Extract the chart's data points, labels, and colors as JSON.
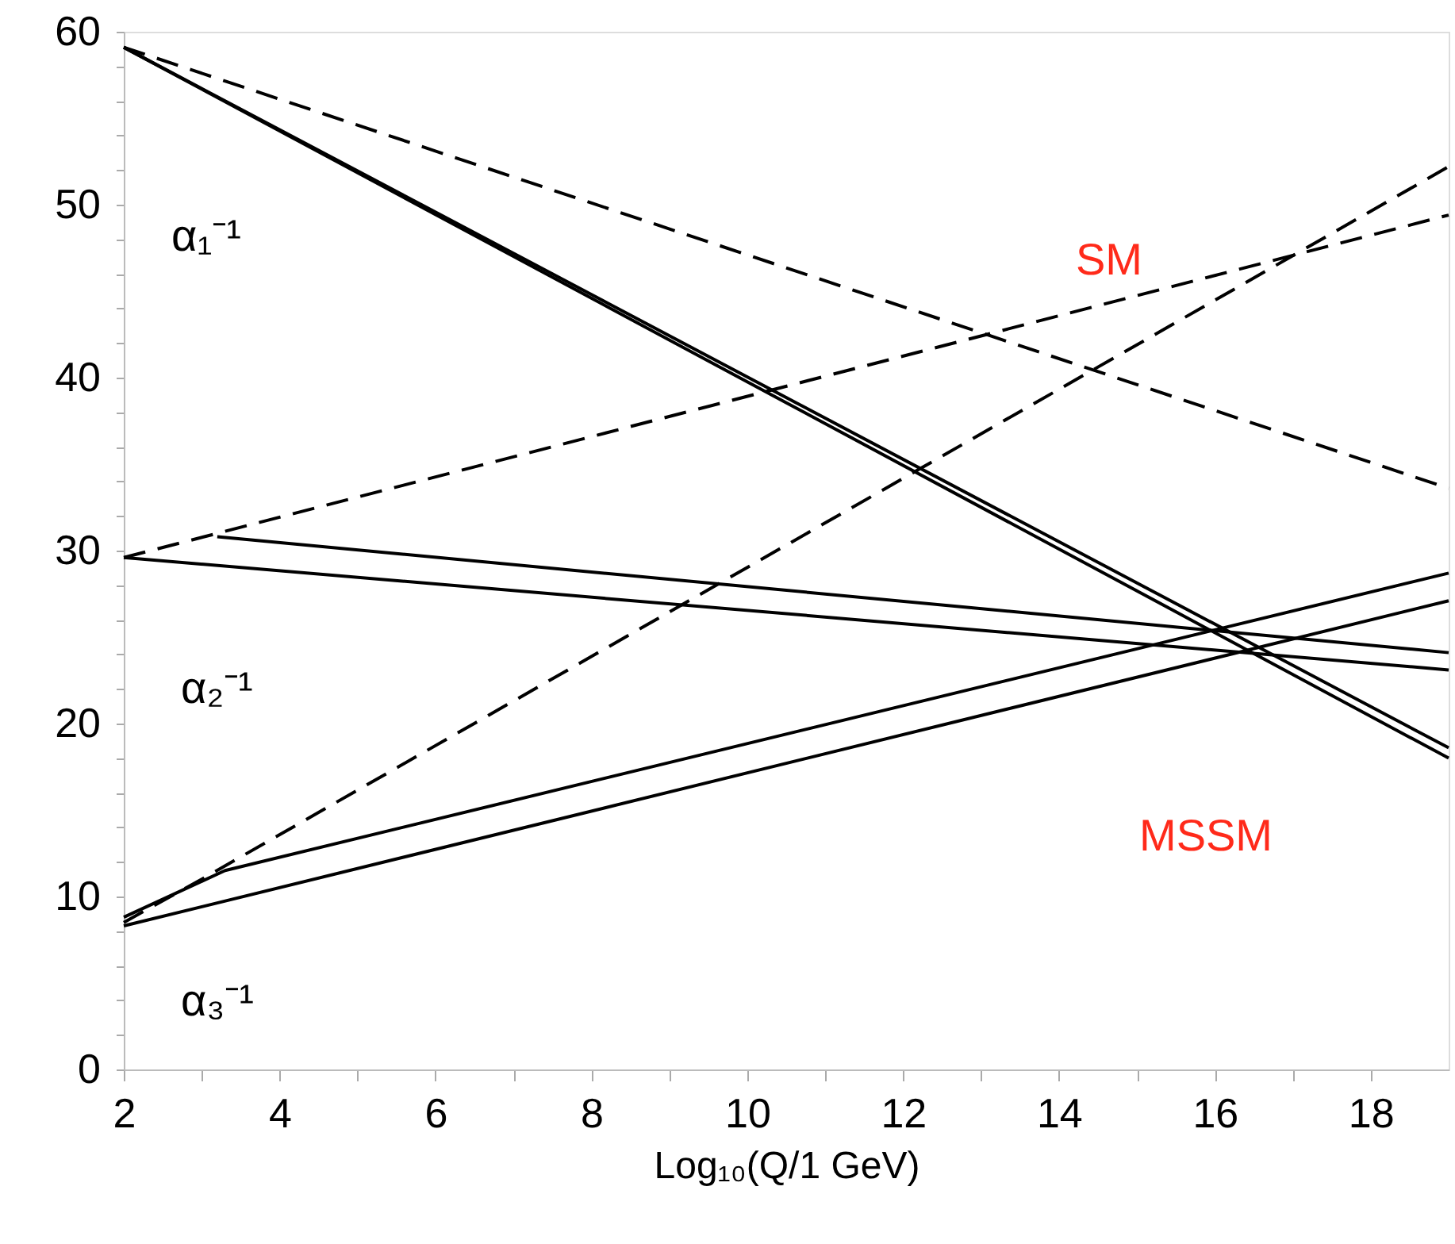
{
  "chart_data": {
    "type": "line",
    "xlabel": "Log₁₀(Q/1 GeV)",
    "xlim": [
      2,
      19
    ],
    "ylim": [
      0,
      60
    ],
    "xticks": [
      2,
      {
        "value": 3,
        "label": null
      },
      4,
      {
        "value": 5,
        "label": null
      },
      6,
      {
        "value": 7,
        "label": null
      },
      8,
      {
        "value": 9,
        "label": null
      },
      10,
      {
        "value": 11,
        "label": null
      },
      12,
      {
        "value": 13,
        "label": null
      },
      14,
      {
        "value": 15,
        "label": null
      },
      16,
      {
        "value": 17,
        "label": null
      },
      18
    ],
    "yticks": [
      0,
      {
        "value": 2,
        "label": null
      },
      {
        "value": 4,
        "label": null
      },
      {
        "value": 6,
        "label": null
      },
      {
        "value": 8,
        "label": null
      },
      10,
      {
        "value": 12,
        "label": null
      },
      {
        "value": 14,
        "label": null
      },
      {
        "value": 16,
        "label": null
      },
      {
        "value": 18,
        "label": null
      },
      20,
      {
        "value": 22,
        "label": null
      },
      {
        "value": 24,
        "label": null
      },
      {
        "value": 26,
        "label": null
      },
      {
        "value": 28,
        "label": null
      },
      30,
      {
        "value": 32,
        "label": null
      },
      {
        "value": 34,
        "label": null
      },
      {
        "value": 36,
        "label": null
      },
      {
        "value": 38,
        "label": null
      },
      40,
      {
        "value": 42,
        "label": null
      },
      {
        "value": 44,
        "label": null
      },
      {
        "value": 46,
        "label": null
      },
      {
        "value": 48,
        "label": null
      },
      50,
      {
        "value": 52,
        "label": null
      },
      {
        "value": 54,
        "label": null
      },
      {
        "value": 56,
        "label": null
      },
      {
        "value": 58,
        "label": null
      },
      60
    ],
    "grid": false,
    "marker": "none",
    "series": [
      {
        "color": "#000000",
        "line_style": "dashed",
        "x": [
          2,
          19
        ],
        "values": [
          59.1,
          33.6
        ]
      },
      {
        "color": "#000000",
        "line_style": "dashed",
        "x": [
          2,
          19
        ],
        "values": [
          29.6,
          49.4
        ]
      },
      {
        "color": "#000000",
        "line_style": "dashed",
        "x": [
          2,
          3,
          19
        ],
        "values": [
          8.5,
          11,
          52.2
        ]
      },
      {
        "color": "#000000",
        "line_style": "solid",
        "x": [
          2,
          19
        ],
        "values": [
          59.1,
          18.6
        ]
      },
      {
        "color": "#000000",
        "line_style": "solid",
        "x": [
          2,
          19
        ],
        "values": [
          59.1,
          18.0
        ]
      },
      {
        "color": "#000000",
        "line_style": "solid",
        "x": [
          3.2,
          19
        ],
        "values": [
          30.8,
          24.1
        ]
      },
      {
        "color": "#000000",
        "line_style": "solid",
        "x": [
          2,
          19
        ],
        "values": [
          29.6,
          23.1
        ]
      },
      {
        "color": "#000000",
        "line_style": "solid",
        "x": [
          2,
          3.3,
          19
        ],
        "values": [
          8.8,
          11.5,
          28.7
        ]
      },
      {
        "color": "#000000",
        "line_style": "solid",
        "x": [
          2,
          19
        ],
        "values": [
          8.3,
          27.1
        ]
      }
    ],
    "annotations": [
      "α₁⁻¹",
      "α₂⁻¹",
      "α₃⁻¹",
      "SM",
      "MSSM"
    ]
  }
}
